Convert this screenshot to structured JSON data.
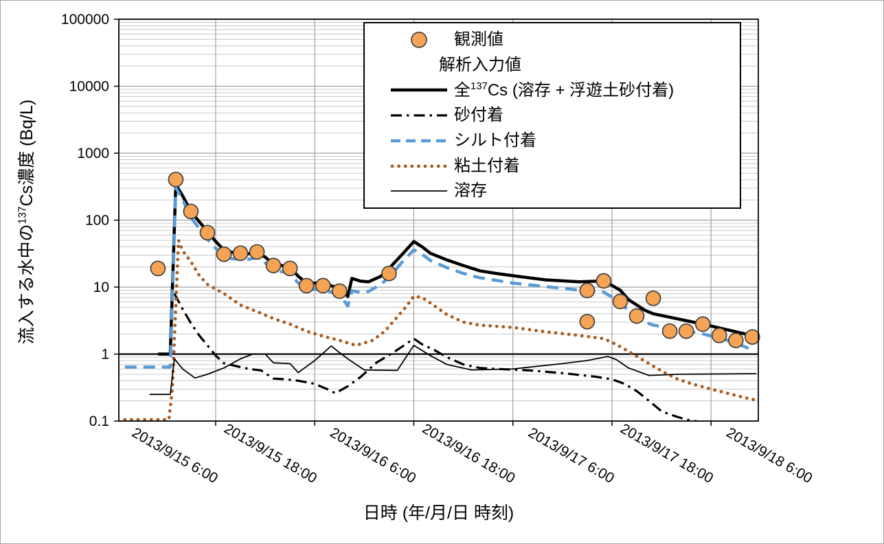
{
  "chart_data": {
    "type": "line",
    "title": "",
    "xlabel": "日時 (年/月/日 時刻)",
    "ylabel_parts": {
      "pre": "流入する水中の",
      "sup": "137",
      "post": "Cs濃度 (Bq/L)"
    },
    "x_axis": {
      "tick_labels": [
        "2013/9/15 6:00",
        "2013/9/15 18:00",
        "2013/9/16 6:00",
        "2013/9/16 18:00",
        "2013/9/17 6:00",
        "2013/9/17 18:00",
        "2013/9/18 6:00"
      ],
      "tick_interval_hours": 12,
      "visible_range": [
        "2013/9/14 18:20",
        "2013/9/17 23:40"
      ]
    },
    "y_axis": {
      "scale": "log",
      "tick_labels": [
        "100000",
        "10000",
        "1000",
        "100",
        "10",
        "1",
        "0.1"
      ],
      "min": 0.1,
      "max": 100000,
      "unit": "Bq/L",
      "emphasized_line_at": 1
    },
    "grid": {
      "horizontal_minor": true,
      "horizontal_major": true,
      "vertical_major": true
    },
    "legend_position": "top-center-inside",
    "colors": {
      "observed_fill": "#F5A455",
      "observed_stroke": "#404040",
      "total": "#000000",
      "sand": "#000000",
      "silt": "#5B9BD5",
      "clay": "#A85A1E",
      "dissolved": "#000000",
      "grid_minor": "#C8C8C8",
      "grid_major": "#A0A0A0"
    },
    "legend": [
      {
        "name": "observed",
        "marker": "circle",
        "label": "観測値"
      },
      {
        "name": "analysis-input-header",
        "marker": "none",
        "label": "解析入力値"
      },
      {
        "name": "total-cs",
        "marker": "thick-solid",
        "label_parts": {
          "pre": "全",
          "sup": "137",
          "post": "Cs (溶存 + 浮遊土砂付着)"
        }
      },
      {
        "name": "sand",
        "marker": "dash-dot",
        "label": "砂付着"
      },
      {
        "name": "silt",
        "marker": "dashed",
        "label": "シルト付着"
      },
      {
        "name": "clay",
        "marker": "dotted",
        "label": "粘土付着"
      },
      {
        "name": "dissolved",
        "marker": "thin-solid",
        "label": "溶存"
      }
    ],
    "series": [
      {
        "name": "全137Cs (溶存 + 浮遊土砂付着)",
        "key": "total-cs",
        "style": "thick-solid",
        "color": "#000000",
        "points": [
          [
            "2013/9/14 23:00",
            1.0
          ],
          [
            "2013/9/15 0:30",
            1.0
          ],
          [
            "2013/9/15 1:10",
            340
          ],
          [
            "2013/9/15 2:00",
            230
          ],
          [
            "2013/9/15 3:00",
            135
          ],
          [
            "2013/9/15 4:00",
            95
          ],
          [
            "2013/9/15 5:00",
            68
          ],
          [
            "2013/9/15 6:00",
            48
          ],
          [
            "2013/9/15 7:00",
            36
          ],
          [
            "2013/9/15 8:00",
            33
          ],
          [
            "2013/9/15 10:00",
            31.5
          ],
          [
            "2013/9/15 11:00",
            33
          ],
          [
            "2013/9/15 12:00",
            28
          ],
          [
            "2013/9/15 13:00",
            22
          ],
          [
            "2013/9/15 15:00",
            20
          ],
          [
            "2013/9/15 16:00",
            14.5
          ],
          [
            "2013/9/15 17:00",
            11.5
          ],
          [
            "2013/9/15 19:00",
            11.5
          ],
          [
            "2013/9/15 20:30",
            10
          ],
          [
            "2013/9/15 21:30",
            8.6
          ],
          [
            "2013/9/15 22:00",
            7.2
          ],
          [
            "2013/9/15 22:30",
            13.5
          ],
          [
            "2013/9/15 23:30",
            12.3
          ],
          [
            "2013/9/16 0:30",
            12.0
          ],
          [
            "2013/9/16 2:00",
            14.5
          ],
          [
            "2013/9/16 3:00",
            19
          ],
          [
            "2013/9/16 4:30",
            30
          ],
          [
            "2013/9/16 6:00",
            48
          ],
          [
            "2013/9/16 7:00",
            40
          ],
          [
            "2013/9/16 8:00",
            32
          ],
          [
            "2013/9/16 10:00",
            25.5
          ],
          [
            "2013/9/16 12:00",
            21
          ],
          [
            "2013/9/16 14:00",
            17.5
          ],
          [
            "2013/9/16 16:00",
            16
          ],
          [
            "2013/9/16 18:00",
            14.8
          ],
          [
            "2013/9/16 22:00",
            12.8
          ],
          [
            "2013/9/17 2:00",
            12.0
          ],
          [
            "2013/9/17 4:30",
            12.3
          ],
          [
            "2013/9/17 5:00",
            12.5
          ],
          [
            "2013/9/17 7:00",
            9.0
          ],
          [
            "2013/9/17 8:00",
            6.5
          ],
          [
            "2013/9/17 10:00",
            4.5
          ],
          [
            "2013/9/17 11:00",
            4.0
          ],
          [
            "2013/9/17 14:00",
            3.35
          ],
          [
            "2013/9/17 17:00",
            2.8
          ],
          [
            "2013/9/17 20:00",
            2.3
          ],
          [
            "2013/9/17 22:30",
            1.95
          ],
          [
            "2013/9/17 23:30",
            1.82
          ]
        ]
      },
      {
        "name": "砂付着",
        "key": "sand",
        "style": "dash-dot",
        "color": "#000000",
        "points": [
          [
            "2013/9/15 1:00",
            8.0
          ],
          [
            "2013/9/15 2:00",
            4.7
          ],
          [
            "2013/9/15 3:00",
            2.9
          ],
          [
            "2013/9/15 4:00",
            1.9
          ],
          [
            "2013/9/15 5:00",
            1.35
          ],
          [
            "2013/9/15 6:00",
            0.95
          ],
          [
            "2013/9/15 7:00",
            0.73
          ],
          [
            "2013/9/15 8:30",
            0.66
          ],
          [
            "2013/9/15 10:00",
            0.6
          ],
          [
            "2013/9/15 11:30",
            0.57
          ],
          [
            "2013/9/15 13:00",
            0.43
          ],
          [
            "2013/9/15 14:30",
            0.42
          ],
          [
            "2013/9/15 16:00",
            0.4
          ],
          [
            "2013/9/15 18:00",
            0.36
          ],
          [
            "2013/9/15 19:30",
            0.3
          ],
          [
            "2013/9/15 20:30",
            0.26
          ],
          [
            "2013/9/15 22:00",
            0.33
          ],
          [
            "2013/9/15 23:30",
            0.45
          ],
          [
            "2013/9/16 1:30",
            0.75
          ],
          [
            "2013/9/16 3:30",
            1.05
          ],
          [
            "2013/9/16 5:00",
            1.4
          ],
          [
            "2013/9/16 6:00",
            1.7
          ],
          [
            "2013/9/16 7:00",
            1.4
          ],
          [
            "2013/9/16 8:30",
            1.15
          ],
          [
            "2013/9/16 10:00",
            0.9
          ],
          [
            "2013/9/16 12:00",
            0.7
          ],
          [
            "2013/9/16 14:00",
            0.62
          ],
          [
            "2013/9/16 16:00",
            0.6
          ],
          [
            "2013/9/16 20:00",
            0.57
          ],
          [
            "2013/9/17 0:00",
            0.52
          ],
          [
            "2013/9/17 4:00",
            0.46
          ],
          [
            "2013/9/17 6:00",
            0.42
          ],
          [
            "2013/9/17 7:30",
            0.36
          ],
          [
            "2013/9/17 9:00",
            0.28
          ],
          [
            "2013/9/17 10:30",
            0.2
          ],
          [
            "2013/9/17 12:00",
            0.14
          ],
          [
            "2013/9/17 13:30",
            0.12
          ],
          [
            "2013/9/17 15:00",
            0.105
          ],
          [
            "2013/9/17 16:30",
            0.098
          ]
        ]
      },
      {
        "name": "シルト付着",
        "key": "silt",
        "style": "dashed",
        "color": "#5B9BD5",
        "points": [
          [
            "2013/9/14 19:00",
            0.64
          ],
          [
            "2013/9/15 0:30",
            0.64
          ],
          [
            "2013/9/15 1:10",
            310
          ],
          [
            "2013/9/15 2:00",
            200
          ],
          [
            "2013/9/15 3:00",
            110
          ],
          [
            "2013/9/15 4:00",
            75
          ],
          [
            "2013/9/15 5:00",
            52
          ],
          [
            "2013/9/15 6:00",
            38
          ],
          [
            "2013/9/15 7:00",
            29
          ],
          [
            "2013/9/15 8:00",
            26.5
          ],
          [
            "2013/9/15 10:00",
            26
          ],
          [
            "2013/9/15 11:00",
            27.5
          ],
          [
            "2013/9/15 12:00",
            23
          ],
          [
            "2013/9/15 13:00",
            18
          ],
          [
            "2013/9/15 15:00",
            16
          ],
          [
            "2013/9/15 16:00",
            11.5
          ],
          [
            "2013/9/15 17:00",
            9.2
          ],
          [
            "2013/9/15 19:00",
            9.2
          ],
          [
            "2013/9/15 20:30",
            8.0
          ],
          [
            "2013/9/15 21:30",
            6.4
          ],
          [
            "2013/9/15 22:00",
            5.2
          ],
          [
            "2013/9/15 22:30",
            8.8
          ],
          [
            "2013/9/15 23:30",
            8.4
          ],
          [
            "2013/9/16 0:30",
            8.6
          ],
          [
            "2013/9/16 2:00",
            11
          ],
          [
            "2013/9/16 3:00",
            14
          ],
          [
            "2013/9/16 4:30",
            23
          ],
          [
            "2013/9/16 6:00",
            36
          ],
          [
            "2013/9/16 7:00",
            31
          ],
          [
            "2013/9/16 8:00",
            25
          ],
          [
            "2013/9/16 10:00",
            19.5
          ],
          [
            "2013/9/16 12:00",
            16
          ],
          [
            "2013/9/16 14:00",
            13.8
          ],
          [
            "2013/9/16 18:00",
            11.5
          ],
          [
            "2013/9/16 22:00",
            10.2
          ],
          [
            "2013/9/17 2:00",
            9.0
          ],
          [
            "2013/9/17 5:00",
            8.4
          ],
          [
            "2013/9/17 7:00",
            6.0
          ],
          [
            "2013/9/17 8:00",
            4.4
          ],
          [
            "2013/9/17 10:00",
            3.0
          ],
          [
            "2013/9/17 11:00",
            2.7
          ],
          [
            "2013/9/17 14:00",
            2.35
          ],
          [
            "2013/9/17 17:00",
            2.0
          ],
          [
            "2013/9/17 20:00",
            1.6
          ],
          [
            "2013/9/17 22:00",
            1.3
          ],
          [
            "2013/9/17 23:15",
            1.12
          ]
        ]
      },
      {
        "name": "粘土付着",
        "key": "clay",
        "style": "dotted",
        "color": "#A85A1E",
        "points": [
          [
            "2013/9/14 19:00",
            0.105
          ],
          [
            "2013/9/15 0:20",
            0.105
          ],
          [
            "2013/9/15 0:45",
            0.3
          ],
          [
            "2013/9/15 1:30",
            50
          ],
          [
            "2013/9/15 2:00",
            35
          ],
          [
            "2013/9/15 3:00",
            24
          ],
          [
            "2013/9/15 4:00",
            15
          ],
          [
            "2013/9/15 5:00",
            11
          ],
          [
            "2013/9/15 7:00",
            8.0
          ],
          [
            "2013/9/15 9:00",
            5.4
          ],
          [
            "2013/9/15 11:00",
            4.3
          ],
          [
            "2013/9/15 13:00",
            3.4
          ],
          [
            "2013/9/15 15:00",
            2.8
          ],
          [
            "2013/9/15 17:00",
            2.2
          ],
          [
            "2013/9/15 19:00",
            1.85
          ],
          [
            "2013/9/15 21:00",
            1.6
          ],
          [
            "2013/9/15 23:00",
            1.35
          ],
          [
            "2013/9/16 1:00",
            1.6
          ],
          [
            "2013/9/16 2:30",
            2.2
          ],
          [
            "2013/9/16 4:00",
            3.6
          ],
          [
            "2013/9/16 5:00",
            5.0
          ],
          [
            "2013/9/16 6:00",
            7.3
          ],
          [
            "2013/9/16 7:00",
            7.0
          ],
          [
            "2013/9/16 8:00",
            5.8
          ],
          [
            "2013/9/16 10:00",
            3.9
          ],
          [
            "2013/9/16 12:00",
            3.0
          ],
          [
            "2013/9/16 14:00",
            2.7
          ],
          [
            "2013/9/16 18:00",
            2.5
          ],
          [
            "2013/9/16 22:00",
            2.15
          ],
          [
            "2013/9/17 2:00",
            1.9
          ],
          [
            "2013/9/17 5:00",
            1.7
          ],
          [
            "2013/9/17 6:30",
            1.4
          ],
          [
            "2013/9/17 8:00",
            1.1
          ],
          [
            "2013/9/17 9:30",
            0.85
          ],
          [
            "2013/9/17 11:00",
            0.66
          ],
          [
            "2013/9/17 12:30",
            0.52
          ],
          [
            "2013/9/17 14:00",
            0.42
          ],
          [
            "2013/9/17 16:00",
            0.35
          ],
          [
            "2013/9/17 18:00",
            0.3
          ],
          [
            "2013/9/17 20:00",
            0.26
          ],
          [
            "2013/9/17 22:00",
            0.225
          ],
          [
            "2013/9/17 23:30",
            0.205
          ]
        ]
      },
      {
        "name": "溶存",
        "key": "dissolved",
        "style": "thin-solid",
        "color": "#000000",
        "points": [
          [
            "2013/9/14 22:00",
            0.25
          ],
          [
            "2013/9/15 0:30",
            0.25
          ],
          [
            "2013/9/15 1:00",
            0.85
          ],
          [
            "2013/9/15 2:00",
            0.6
          ],
          [
            "2013/9/15 3:30",
            0.44
          ],
          [
            "2013/9/15 5:00",
            0.5
          ],
          [
            "2013/9/15 7:00",
            0.62
          ],
          [
            "2013/9/15 9:00",
            0.85
          ],
          [
            "2013/9/15 10:30",
            1.0
          ],
          [
            "2013/9/15 12:00",
            1.0
          ],
          [
            "2013/9/15 13:00",
            0.74
          ],
          [
            "2013/9/15 15:00",
            0.72
          ],
          [
            "2013/9/15 16:00",
            0.53
          ],
          [
            "2013/9/15 18:00",
            0.8
          ],
          [
            "2013/9/15 20:00",
            1.32
          ],
          [
            "2013/9/15 21:00",
            1.05
          ],
          [
            "2013/9/15 22:00",
            0.85
          ],
          [
            "2013/9/16 0:00",
            0.58
          ],
          [
            "2013/9/16 4:00",
            0.57
          ],
          [
            "2013/9/16 6:00",
            1.35
          ],
          [
            "2013/9/16 8:00",
            0.95
          ],
          [
            "2013/9/16 10:00",
            0.7
          ],
          [
            "2013/9/16 13:00",
            0.58
          ],
          [
            "2013/9/16 18:00",
            0.6
          ],
          [
            "2013/9/17 0:00",
            0.72
          ],
          [
            "2013/9/17 3:00",
            0.8
          ],
          [
            "2013/9/17 5:30",
            0.92
          ],
          [
            "2013/9/17 6:30",
            0.83
          ],
          [
            "2013/9/17 8:00",
            0.62
          ],
          [
            "2013/9/17 10:30",
            0.48
          ],
          [
            "2013/9/17 14:00",
            0.5
          ],
          [
            "2013/9/17 23:30",
            0.51
          ]
        ]
      },
      {
        "name": "観測値",
        "key": "observed",
        "style": "scatter",
        "color": "#F5A455",
        "points": [
          [
            "2013/9/14 23:00",
            19
          ],
          [
            "2013/9/15 1:10",
            405
          ],
          [
            "2013/9/15 3:00",
            135
          ],
          [
            "2013/9/15 5:00",
            65
          ],
          [
            "2013/9/15 7:00",
            31
          ],
          [
            "2013/9/15 9:00",
            32
          ],
          [
            "2013/9/15 11:00",
            33.5
          ],
          [
            "2013/9/15 13:00",
            21
          ],
          [
            "2013/9/15 15:00",
            19
          ],
          [
            "2013/9/15 17:00",
            10.5
          ],
          [
            "2013/9/15 19:00",
            10.5
          ],
          [
            "2013/9/15 21:00",
            8.7
          ],
          [
            "2013/9/16 3:00",
            16
          ],
          [
            "2013/9/17 3:00",
            8.9
          ],
          [
            "2013/9/17 3:00",
            3.05
          ],
          [
            "2013/9/17 5:00",
            12.4
          ],
          [
            "2013/9/17 7:00",
            6.1
          ],
          [
            "2013/9/17 9:00",
            3.7
          ],
          [
            "2013/9/17 11:00",
            6.8
          ],
          [
            "2013/9/17 13:00",
            2.2
          ],
          [
            "2013/9/17 15:00",
            2.2
          ],
          [
            "2013/9/17 17:00",
            2.8
          ],
          [
            "2013/9/17 19:00",
            1.9
          ],
          [
            "2013/9/17 21:00",
            1.6
          ],
          [
            "2013/9/17 23:00",
            1.8
          ]
        ]
      }
    ]
  }
}
